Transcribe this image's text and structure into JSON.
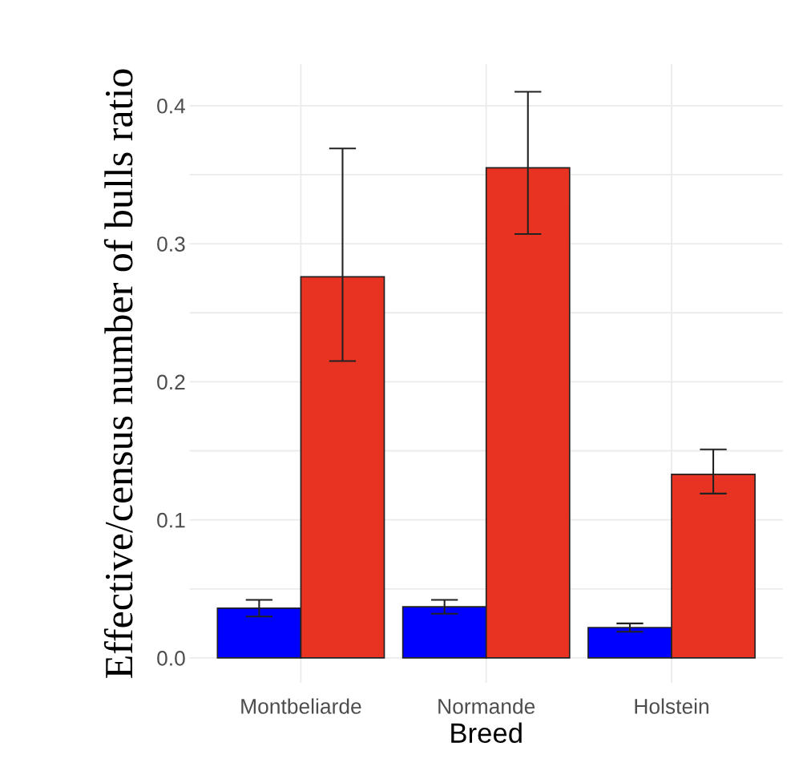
{
  "chart_data": {
    "type": "bar",
    "xlabel": "Breed",
    "ylabel": "Effective/census number of bulls ratio",
    "categories": [
      "Montbeliarde",
      "Normande",
      "Holstein"
    ],
    "series": [
      {
        "color": "#0000ff",
        "values": [
          0.036,
          0.037,
          0.022
        ],
        "errors": [
          [
            0.03,
            0.042
          ],
          [
            0.032,
            0.042
          ],
          [
            0.019,
            0.025
          ]
        ]
      },
      {
        "color": "#e83323",
        "values": [
          0.276,
          0.355,
          0.133
        ],
        "errors": [
          [
            0.215,
            0.369
          ],
          [
            0.307,
            0.41
          ],
          [
            0.119,
            0.151
          ]
        ]
      }
    ],
    "ylim": [
      -0.018,
      0.43
    ],
    "yticks": [
      {
        "value": 0,
        "label": "0.0"
      },
      {
        "value": 0.05,
        "label": null
      },
      0.1,
      {
        "value": 0.15,
        "label": null
      },
      0.2,
      {
        "value": 0.25,
        "label": null
      },
      0.3,
      {
        "value": 0.35,
        "label": null
      },
      0.4
    ],
    "grid": true
  }
}
